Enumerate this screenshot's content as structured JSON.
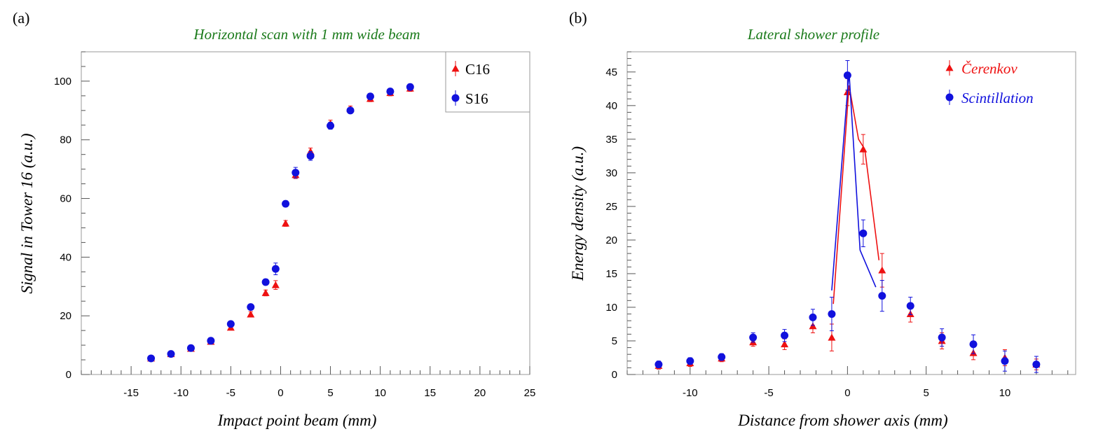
{
  "chart_data": [
    {
      "type": "scatter",
      "panel_label": "(a)",
      "title": "Horizontal scan with 1 mm wide beam",
      "xlabel": "Impact point beam (mm)",
      "ylabel": "Signal in Tower 16 (a.u.)",
      "xlim": [
        -20,
        25
      ],
      "ylim": [
        0,
        110
      ],
      "x_ticks": [
        -15,
        -10,
        -5,
        0,
        5,
        10,
        15,
        20,
        25
      ],
      "y_ticks": [
        0,
        20,
        40,
        60,
        80,
        100
      ],
      "grid": false,
      "legend_position": "top-right",
      "series": [
        {
          "name": "C16",
          "color": "#ee1111",
          "marker": "triangle",
          "x": [
            -13,
            -11,
            -9,
            -7,
            -5,
            -3,
            -1.5,
            -0.5,
            0.5,
            1.5,
            3,
            5,
            7,
            9,
            11,
            13
          ],
          "y": [
            5.5,
            7,
            8.8,
            11.2,
            16,
            20.5,
            27.8,
            30.5,
            51.5,
            68,
            76,
            85.5,
            90.5,
            94,
            96,
            97.5
          ],
          "err": [
            0.6,
            0.6,
            0.7,
            0.7,
            0.8,
            0.9,
            1,
            1.5,
            1,
            1.2,
            1.2,
            1.2,
            1,
            1,
            1,
            1
          ]
        },
        {
          "name": "S16",
          "color": "#1111dd",
          "marker": "circle",
          "x": [
            -13,
            -11,
            -9,
            -7,
            -5,
            -3,
            -1.5,
            -0.5,
            0.5,
            1.5,
            3,
            5,
            7,
            9,
            11,
            13
          ],
          "y": [
            5.5,
            7,
            9,
            11.5,
            17.2,
            23,
            31.5,
            36,
            58.2,
            68.8,
            74.5,
            84.8,
            90,
            94.8,
            96.5,
            98
          ],
          "err": [
            0.6,
            0.6,
            0.7,
            0.7,
            0.8,
            0.9,
            1,
            2,
            1,
            1.8,
            1.5,
            1.2,
            1,
            1,
            1,
            1
          ]
        }
      ]
    },
    {
      "type": "scatter",
      "panel_label": "(b)",
      "title": "Lateral shower profile",
      "xlabel": "Distance from shower axis (mm)",
      "ylabel": "Energy density (a.u.)",
      "xlim": [
        -14,
        14.5
      ],
      "ylim": [
        0,
        48
      ],
      "x_ticks": [
        -10,
        -5,
        0,
        5,
        10
      ],
      "y_ticks": [
        0,
        5,
        10,
        15,
        20,
        25,
        30,
        35,
        40,
        45
      ],
      "grid": false,
      "legend_position": "top-right",
      "series": [
        {
          "name": "Čerenkov",
          "color": "#ee1111",
          "marker": "triangle",
          "x": [
            -12,
            -10,
            -8,
            -6,
            -4,
            -2.2,
            -1,
            0,
            1,
            2.2,
            4,
            6,
            8,
            10,
            12
          ],
          "y": [
            1.3,
            1.7,
            2.4,
            4.8,
            4.5,
            7.2,
            5.5,
            42,
            33.5,
            15.5,
            9,
            5,
            3.2,
            2.5,
            1.5
          ],
          "err": [
            0.5,
            0.5,
            0.5,
            0.6,
            0.8,
            1,
            2,
            2,
            2.2,
            2.5,
            1.2,
            1.2,
            1,
            1.2,
            0.8
          ],
          "line_x": [
            -0.9,
            0.1,
            0.7,
            1.1,
            2.0
          ],
          "line_y": [
            10.5,
            43,
            35,
            33.5,
            17
          ]
        },
        {
          "name": "Scintillation",
          "color": "#1111dd",
          "marker": "circle",
          "x": [
            -12,
            -10,
            -8,
            -6,
            -4,
            -2.2,
            -1,
            0,
            1,
            2.2,
            4,
            6,
            8,
            10,
            12
          ],
          "y": [
            1.5,
            2,
            2.6,
            5.5,
            5.8,
            8.5,
            9,
            44.5,
            21,
            11.7,
            10.2,
            5.5,
            4.5,
            2,
            1.5
          ],
          "err": [
            0.5,
            0.5,
            0.5,
            0.7,
            0.9,
            1.2,
            2.5,
            2.2,
            2,
            2.3,
            1.3,
            1.3,
            1.4,
            1.5,
            1.2
          ],
          "line_x": [
            -1.0,
            0.1,
            0.8,
            1.8
          ],
          "line_y": [
            12.5,
            45,
            18.5,
            13
          ]
        }
      ]
    }
  ]
}
